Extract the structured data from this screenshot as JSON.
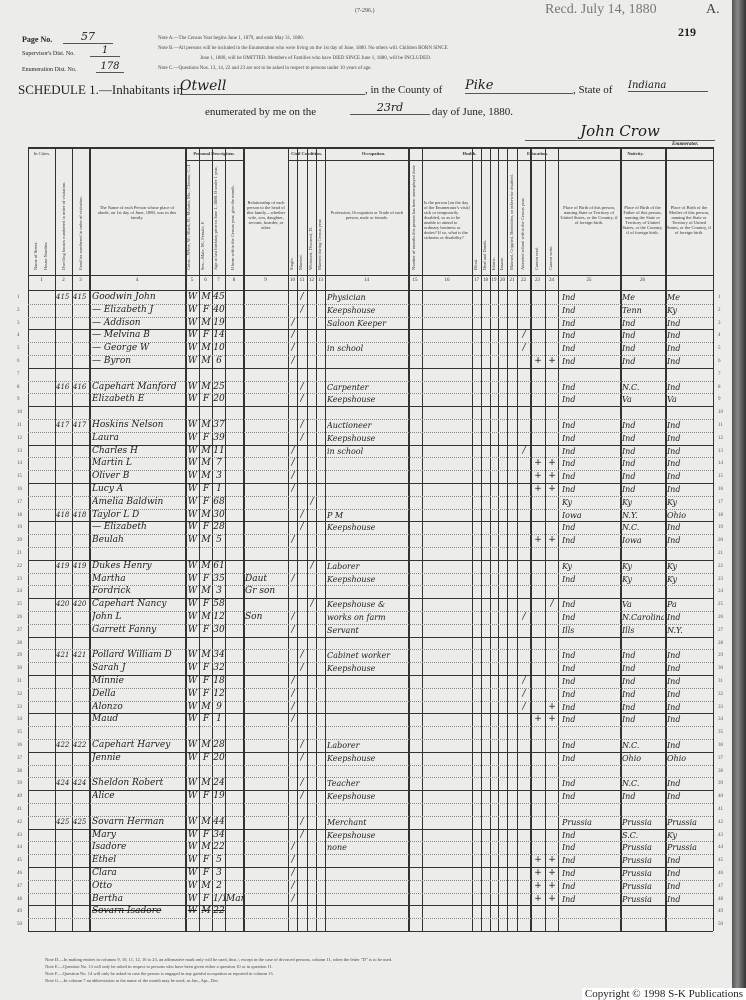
{
  "form_code": "(7-296.)",
  "received_stamp": "Recd. July 14, 1880",
  "corner_letter": "A.",
  "sheet_number": "219",
  "page_no_label": "Page No.",
  "page_no": "57",
  "supervisor_label": "Supervisor's Dist. No.",
  "supervisor_no": "1",
  "enumeration_label": "Enumeration Dist. No.",
  "enumeration_no": "178",
  "notes_top": [
    "Note A.—The Census Year begins June 1, 1879, and ends May 31, 1880.",
    "Note B.—All persons will be included in the Enumeration who were living on the 1st day of June, 1880. No others will. Children BORN SINCE",
    "June 1, 1880, will be OMITTED. Members of Families who have DIED SINCE June 1, 1880, will be INCLUDED.",
    "Note C.—Questions Nos. 13, 14, 22 and 23 are not to be asked in respect to persons under 10 years of age."
  ],
  "schedule": {
    "title": "SCHEDULE 1.—Inhabitants in",
    "place": "Otwell",
    "county_label": ", in the County of",
    "county": "Pike",
    "state_label": ", State of",
    "state": "Indiana",
    "enumerated_label": "enumerated by me on the",
    "day": "23rd",
    "day_suffix": "day of June, 1880.",
    "signature": "John Crow",
    "enumerator_label": "Enumerator."
  },
  "headers": {
    "in_cities": "In Cities.",
    "street": "Name of Street.",
    "house_number": "House Number.",
    "dwelling": "Dwelling houses numbered in order of visitation.",
    "family": "Families numbered in order of visitation.",
    "name": "The Name of each Person whose place of abode, on 1st day of June, 1880, was in this family.",
    "personal": "Personal Description.",
    "color": "Color—White, W.; Black, B.; Mulatto, Mu.; Chinese, C.; Indian, I.",
    "sex": "Sex—Male, M.; Female, F.",
    "age": "Age at last birthday prior to June 1, 1880. If under 1 year, give months in fractions, thus 3/12.",
    "month": "If born within the Census year, give the month.",
    "relationship": "Relationship of each person to the head of this family—whether wife, son, daughter, servant, boarder, or other.",
    "civil": "Civil Condition.",
    "single": "Single.",
    "married": "Married.",
    "widowed": "Widowed, Divorced, D.",
    "married_year": "Married during Census year.",
    "occupation": "Occupation.",
    "occupation_desc": "Profession, Occupation or Trade of each person, male or female.",
    "unemployed": "Number of months this person has been unemployed during the Census year.",
    "health": "Health.",
    "sickness": "Is the person [on the day of the Enumerator's visit] sick or temporarily disabled, so as to be unable to attend to ordinary business or duties? If so, what is the sickness or disability?",
    "blind": "Blind.",
    "deaf": "Deaf and Dumb.",
    "idiotic": "Idiotic.",
    "insane": "Insane.",
    "maimed": "Maimed, Crippled, Bedridden, or otherwise disabled.",
    "education": "Education.",
    "school": "Attended school within the Census year.",
    "cannot_read": "Cannot read.",
    "cannot_write": "Cannot write.",
    "nativity": "Nativity.",
    "birth_person": "Place of Birth of this person, naming State or Territory of United States, or the Country, if of foreign birth.",
    "birth_father": "Place of Birth of the Father of this person, naming the State or Territory of United States, or the Country, if of foreign birth.",
    "birth_mother": "Place of Birth of the Mother of this person, naming the State or Territory of United States, or the Country, if of foreign birth."
  },
  "column_numbers": [
    "1",
    "2",
    "3",
    "4",
    "5",
    "6",
    "7",
    "8",
    "9",
    "10",
    "11",
    "12",
    "13",
    "14",
    "15",
    "16",
    "17",
    "18",
    "19",
    "20",
    "21",
    "22",
    "23",
    "24",
    "25",
    "26"
  ],
  "line_numbers": [
    "1",
    "2",
    "3",
    "4",
    "5",
    "6",
    "7",
    "8",
    "9",
    "10",
    "11",
    "12",
    "13",
    "14",
    "15",
    "16",
    "17",
    "18",
    "19",
    "20",
    "21",
    "22",
    "23",
    "24",
    "25",
    "26",
    "27",
    "28",
    "29",
    "30",
    "31",
    "32",
    "33",
    "34",
    "35",
    "36",
    "37",
    "38",
    "39",
    "40",
    "41",
    "42",
    "43",
    "44",
    "45",
    "46",
    "47",
    "48",
    "49",
    "50"
  ],
  "rows": [
    {
      "dw": "415",
      "fam": "415",
      "name": "Goodwin John",
      "color": "W",
      "sex": "M",
      "age": "45",
      "m": "/",
      "occ": "Physician",
      "bp": "Ind",
      "bpf": "Me",
      "bpm": "Me"
    },
    {
      "name": "— Elizabeth J",
      "color": "W",
      "sex": "F",
      "age": "40",
      "m": "/",
      "occ": "Keepshouse",
      "bp": "Ind",
      "bpf": "Tenn",
      "bpm": "Ky"
    },
    {
      "name": "— Addison",
      "color": "W",
      "sex": "M",
      "age": "19",
      "s": "/",
      "occ": "Saloon Keeper",
      "bp": "Ind",
      "bpf": "Ind",
      "bpm": "Ind"
    },
    {
      "name": "— Melvina B",
      "color": "W",
      "sex": "F",
      "age": "14",
      "s": "/",
      "school": "/",
      "bp": "Ind",
      "bpf": "Ind",
      "bpm": "Ind"
    },
    {
      "name": "— George W",
      "color": "W",
      "sex": "M",
      "age": "10",
      "s": "/",
      "occ": "in school",
      "school": "/",
      "bp": "Ind",
      "bpf": "Ind",
      "bpm": "Ind"
    },
    {
      "name": "— Byron",
      "color": "W",
      "sex": "M",
      "age": "6",
      "s": "/",
      "read": "+",
      "write": "+",
      "bp": "Ind",
      "bpf": "Ind",
      "bpm": "Ind"
    },
    {},
    {
      "dw": "416",
      "fam": "416",
      "name": "Capehart Manford",
      "color": "W",
      "sex": "M",
      "age": "25",
      "m": "/",
      "occ": "Carpenter",
      "bp": "Ind",
      "bpf": "N.C.",
      "bpm": "Ind"
    },
    {
      "name": "Elizabeth E",
      "color": "W",
      "sex": "F",
      "age": "20",
      "m": "/",
      "occ": "Keepshouse",
      "bp": "Ind",
      "bpf": "Va",
      "bpm": "Va"
    },
    {},
    {
      "dw": "417",
      "fam": "417",
      "name": "Hoskins Nelson",
      "color": "W",
      "sex": "M",
      "age": "37",
      "m": "/",
      "occ": "Auctioneer",
      "bp": "Ind",
      "bpf": "Ind",
      "bpm": "Ind"
    },
    {
      "name": "Laura",
      "color": "W",
      "sex": "F",
      "age": "39",
      "m": "/",
      "occ": "Keepshouse",
      "bp": "Ind",
      "bpf": "Ind",
      "bpm": "Ind"
    },
    {
      "name": "Charles H",
      "color": "W",
      "sex": "M",
      "age": "11",
      "s": "/",
      "occ": "in school",
      "school": "/",
      "bp": "Ind",
      "bpf": "Ind",
      "bpm": "Ind"
    },
    {
      "name": "Martin L",
      "color": "W",
      "sex": "M",
      "age": "7",
      "s": "/",
      "read": "+",
      "write": "+",
      "bp": "Ind",
      "bpf": "Ind",
      "bpm": "Ind"
    },
    {
      "name": "Oliver B",
      "color": "W",
      "sex": "M",
      "age": "3",
      "s": "/",
      "read": "+",
      "write": "+",
      "bp": "Ind",
      "bpf": "Ind",
      "bpm": "Ind"
    },
    {
      "name": "Lucy A",
      "color": "W",
      "sex": "F",
      "age": "1",
      "s": "/",
      "read": "+",
      "write": "+",
      "bp": "Ind",
      "bpf": "Ind",
      "bpm": "Ind"
    },
    {
      "name": "Amelia Baldwin",
      "color": "W",
      "sex": "F",
      "age": "68",
      "w": "/",
      "bp": "Ky",
      "bpf": "Ky",
      "bpm": "Ky"
    },
    {
      "dw": "418",
      "fam": "418",
      "name": "Taylor L D",
      "color": "W",
      "sex": "M",
      "age": "30",
      "m": "/",
      "occ": "P M",
      "bp": "Iowa",
      "bpf": "N.Y.",
      "bpm": "Ohio"
    },
    {
      "name": "— Elizabeth",
      "color": "W",
      "sex": "F",
      "age": "28",
      "m": "/",
      "occ": "Keepshouse",
      "bp": "Ind",
      "bpf": "N.C.",
      "bpm": "Ind"
    },
    {
      "name": "Beulah",
      "color": "W",
      "sex": "M",
      "age": "5",
      "s": "/",
      "read": "+",
      "write": "+",
      "bp": "Ind",
      "bpf": "Iowa",
      "bpm": "Ind"
    },
    {},
    {
      "dw": "419",
      "fam": "419",
      "name": "Dukes Henry",
      "color": "W",
      "sex": "M",
      "age": "61",
      "w": "/",
      "occ": "Laborer",
      "bp": "Ky",
      "bpf": "Ky",
      "bpm": "Ky"
    },
    {
      "name": "Martha",
      "color": "W",
      "sex": "F",
      "age": "35",
      "rel": "Daut",
      "s": "/",
      "occ": "Keepshouse",
      "bp": "Ind",
      "bpf": "Ky",
      "bpm": "Ky"
    },
    {
      "name": "Fordrick",
      "color": "W",
      "sex": "M",
      "age": "3",
      "rel": "Gr son"
    },
    {
      "dw": "420",
      "fam": "420",
      "name": "Capehart Nancy",
      "color": "W",
      "sex": "F",
      "age": "58",
      "w": "/",
      "occ": "Keepshouse &",
      "write": "/",
      "bp": "Ind",
      "bpf": "Va",
      "bpm": "Pa"
    },
    {
      "name": "John L",
      "color": "W",
      "sex": "M",
      "age": "12",
      "rel": "Son",
      "s": "/",
      "occ": "works on farm",
      "school": "/",
      "bp": "Ind",
      "bpf": "N.Carolina",
      "bpm": "Ind"
    },
    {
      "name": "Garrett Fanny",
      "color": "W",
      "sex": "F",
      "age": "30",
      "s": "/",
      "occ": "Servant",
      "bp": "Ills",
      "bpf": "Ills",
      "bpm": "N.Y."
    },
    {},
    {
      "dw": "421",
      "fam": "421",
      "name": "Pollard William D",
      "color": "W",
      "sex": "M",
      "age": "34",
      "m": "/",
      "occ": "Cabinet worker",
      "bp": "Ind",
      "bpf": "Ind",
      "bpm": "Ind"
    },
    {
      "name": "Sarah J",
      "color": "W",
      "sex": "F",
      "age": "32",
      "m": "/",
      "occ": "Keepshouse",
      "bp": "Ind",
      "bpf": "Ind",
      "bpm": "Ind"
    },
    {
      "name": "Minnie",
      "color": "W",
      "sex": "F",
      "age": "18",
      "s": "/",
      "school": "/",
      "bp": "Ind",
      "bpf": "Ind",
      "bpm": "Ind"
    },
    {
      "name": "Della",
      "color": "W",
      "sex": "F",
      "age": "12",
      "s": "/",
      "school": "/",
      "bp": "Ind",
      "bpf": "Ind",
      "bpm": "Ind"
    },
    {
      "name": "Alonzo",
      "color": "W",
      "sex": "M",
      "age": "9",
      "s": "/",
      "school": "/",
      "write": "+",
      "bp": "Ind",
      "bpf": "Ind",
      "bpm": "Ind"
    },
    {
      "name": "Maud",
      "color": "W",
      "sex": "F",
      "age": "1",
      "s": "/",
      "read": "+",
      "write": "+",
      "bp": "Ind",
      "bpf": "Ind",
      "bpm": "Ind"
    },
    {},
    {
      "dw": "422",
      "fam": "422",
      "name": "Capehart Harvey",
      "color": "W",
      "sex": "M",
      "age": "28",
      "m": "/",
      "occ": "Laborer",
      "bp": "Ind",
      "bpf": "N.C.",
      "bpm": "Ind"
    },
    {
      "name": "Jennie",
      "color": "W",
      "sex": "F",
      "age": "20",
      "m": "/",
      "occ": "Keepshouse",
      "bp": "Ind",
      "bpf": "Ohio",
      "bpm": "Ohio"
    },
    {},
    {
      "dw": "424",
      "fam": "424",
      "name": "Sheldon Robert",
      "color": "W",
      "sex": "M",
      "age": "24",
      "m": "/",
      "occ": "Teacher",
      "bp": "Ind",
      "bpf": "N.C.",
      "bpm": "Ind"
    },
    {
      "name": "Alice",
      "color": "W",
      "sex": "F",
      "age": "19",
      "m": "/",
      "occ": "Keepshouse",
      "bp": "Ind",
      "bpf": "Ind",
      "bpm": "Ind"
    },
    {},
    {
      "dw": "425",
      "fam": "425",
      "name": "Sovarn Herman",
      "color": "W",
      "sex": "M",
      "age": "44",
      "m": "/",
      "occ": "Merchant",
      "bp": "Prussia",
      "bpf": "Prussia",
      "bpm": "Prussia"
    },
    {
      "name": "Mary",
      "color": "W",
      "sex": "F",
      "age": "34",
      "m": "/",
      "occ": "Keepshouse",
      "bp": "Ind",
      "bpf": "S.C.",
      "bpm": "Ky"
    },
    {
      "name": "Isadore",
      "color": "W",
      "sex": "M",
      "age": "22",
      "s": "/",
      "occ": "none",
      "bp": "Ind",
      "bpf": "Prussia",
      "bpm": "Prussia"
    },
    {
      "name": "Ethel",
      "color": "W",
      "sex": "F",
      "age": "5",
      "s": "/",
      "read": "+",
      "write": "+",
      "bp": "Ind",
      "bpf": "Prussia",
      "bpm": "Ind"
    },
    {
      "name": "Clara",
      "color": "W",
      "sex": "F",
      "age": "3",
      "s": "/",
      "read": "+",
      "write": "+",
      "bp": "Ind",
      "bpf": "Prussia",
      "bpm": "Ind"
    },
    {
      "name": "Otto",
      "color": "W",
      "sex": "M",
      "age": "2",
      "s": "/",
      "read": "+",
      "write": "+",
      "bp": "Ind",
      "bpf": "Prussia",
      "bpm": "Ind"
    },
    {
      "name": "Bertha",
      "color": "W",
      "sex": "F",
      "age": "1/12",
      "month": "Mar",
      "s": "/",
      "read": "+",
      "write": "+",
      "bp": "Ind",
      "bpf": "Prussia",
      "bpm": "Ind"
    },
    {
      "name": "Sovarn Isadore",
      "color": "W",
      "sex": "M",
      "age": "22",
      "struck": true
    },
    {}
  ],
  "notes_bottom": [
    "Note D.—In making entries in columns 9, 10, 11, 12, 16 to 23, an affirmative mark only will be used, thus /, except in the case of divorced persons, column 11, when the letter \"D\" is to be used.",
    "Note E.—Question No. 13 will only be asked in respect to persons who have been given either a question 10 or in question 11.",
    "Note F.—Question No. 14 will only be asked in case the person is engaged in any gainful occupation as reported in column 13.",
    "Note G.—In column 7 an abbreviation in the name of the month may be used, as Jan., Apr., Dec."
  ],
  "copyright": "Copyright © 1998 S-K Publications"
}
